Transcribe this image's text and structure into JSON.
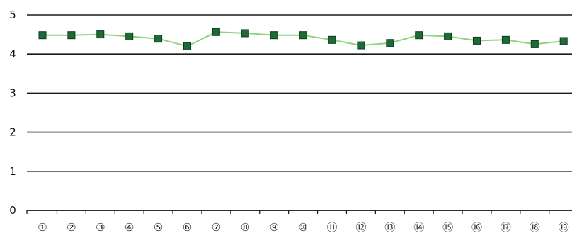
{
  "chart_data": {
    "type": "line",
    "categories": [
      "①",
      "②",
      "③",
      "④",
      "⑤",
      "⑥",
      "⑦",
      "⑧",
      "⑨",
      "⑩",
      "⑪",
      "⑫",
      "⑬",
      "⑭",
      "⑮",
      "⑯",
      "⑰",
      "⑱",
      "⑲"
    ],
    "series": [
      {
        "values": [
          4.48,
          4.48,
          4.5,
          4.45,
          4.39,
          4.2,
          4.56,
          4.53,
          4.48,
          4.48,
          4.36,
          4.22,
          4.28,
          4.48,
          4.45,
          4.34,
          4.36,
          4.25,
          4.33
        ],
        "line_color": "#8cd47e",
        "marker_color": "#1f6b37",
        "marker": "square"
      }
    ],
    "ylim": [
      0,
      5
    ],
    "yticks": [
      "0",
      "1",
      "2",
      "3",
      "4",
      "5"
    ],
    "grid": true,
    "gridline_color": "#1a1a1a",
    "legend": "none"
  }
}
